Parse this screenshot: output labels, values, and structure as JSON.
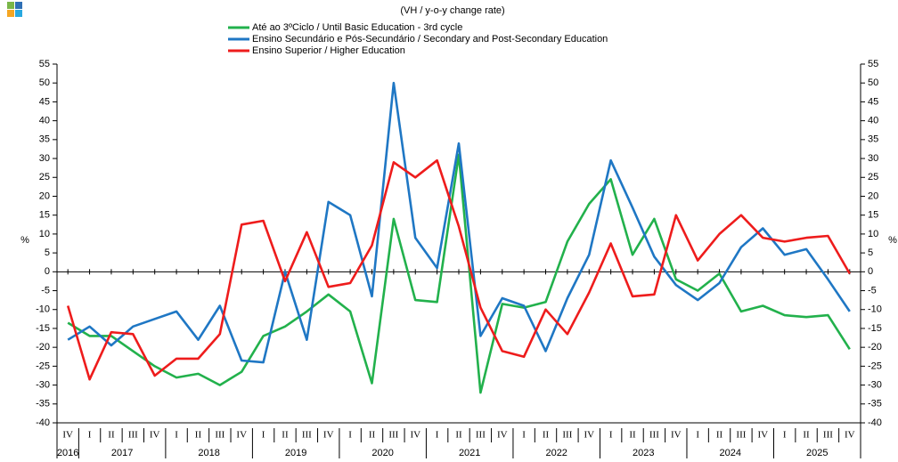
{
  "chart_data": {
    "type": "line",
    "subtitle": "(VH / y-o-y change rate)",
    "y_label": "%",
    "y2_label": "%",
    "categories": [
      "IV",
      "I",
      "II",
      "III",
      "IV",
      "I",
      "II",
      "III",
      "IV",
      "I",
      "II",
      "III",
      "IV",
      "I",
      "II",
      "III",
      "IV",
      "I",
      "II",
      "III",
      "IV",
      "I",
      "II",
      "III",
      "IV",
      "I",
      "II",
      "III",
      "IV",
      "I",
      "II",
      "III",
      "IV",
      "I",
      "II",
      "III",
      "IV"
    ],
    "years": [
      "2016",
      "2017",
      "2018",
      "2019",
      "2020",
      "2021",
      "2022",
      "2023",
      "2024",
      "2025"
    ],
    "ylim": [
      -40,
      55
    ],
    "yticks": [
      -40,
      -35,
      -30,
      -25,
      -20,
      -15,
      -10,
      -5,
      0,
      5,
      10,
      15,
      20,
      25,
      30,
      35,
      40,
      45,
      50,
      55
    ],
    "y2lim": [
      -40,
      55
    ],
    "y2ticks": [
      -40,
      -35,
      -30,
      -25,
      -20,
      -15,
      -10,
      -5,
      0,
      5,
      10,
      15,
      20,
      25,
      30,
      35,
      40,
      45,
      50,
      55
    ],
    "series": [
      {
        "name": "Até ao 3ºCiclo / Until Basic Education - 3rd cycle",
        "color": "#22b14c",
        "values": [
          -13.5,
          -17,
          -17,
          -21,
          -25,
          -28,
          -27,
          -30,
          -26.5,
          -17,
          -14.5,
          -10.5,
          -6,
          -10.5,
          -29.5,
          14,
          -7.5,
          -8,
          31,
          -32,
          -8.5,
          -9.5,
          -8,
          8,
          18,
          24.5,
          4.5,
          14,
          -2,
          -5,
          -0.5,
          -10.5,
          -9,
          -11.5,
          -12,
          -11.5,
          -20.5
        ]
      },
      {
        "name": "Ensino Secundário e Pós-Secundário / Secondary and Post-Secondary Education",
        "color": "#1f77c4",
        "values": [
          -18,
          -14.5,
          -19.5,
          -14.5,
          -12.5,
          -10.5,
          -18,
          -9,
          -23.5,
          -24,
          0,
          -18,
          18.5,
          15,
          -6.5,
          50,
          9,
          1,
          34,
          -17,
          -7,
          -9,
          -21,
          -7,
          4.5,
          29.5,
          17,
          4,
          -3.5,
          -7.5,
          -3,
          6.5,
          11.5,
          4.5,
          6,
          -2,
          -10.5
        ]
      },
      {
        "name": "Ensino Superior / Higher Education",
        "color": "#ee1c1c",
        "values": [
          -9,
          -28.5,
          -16,
          -16.5,
          -27.5,
          -23,
          -23,
          -16.5,
          12.5,
          13.5,
          -2.5,
          10.5,
          -4,
          -3,
          7,
          29,
          25,
          29.5,
          12,
          -9.5,
          -21,
          -22.5,
          -10,
          -16.5,
          -5.5,
          7.5,
          -6.5,
          -6,
          15,
          3,
          10,
          15,
          9,
          8,
          9,
          9.5,
          -0.5
        ]
      }
    ]
  }
}
